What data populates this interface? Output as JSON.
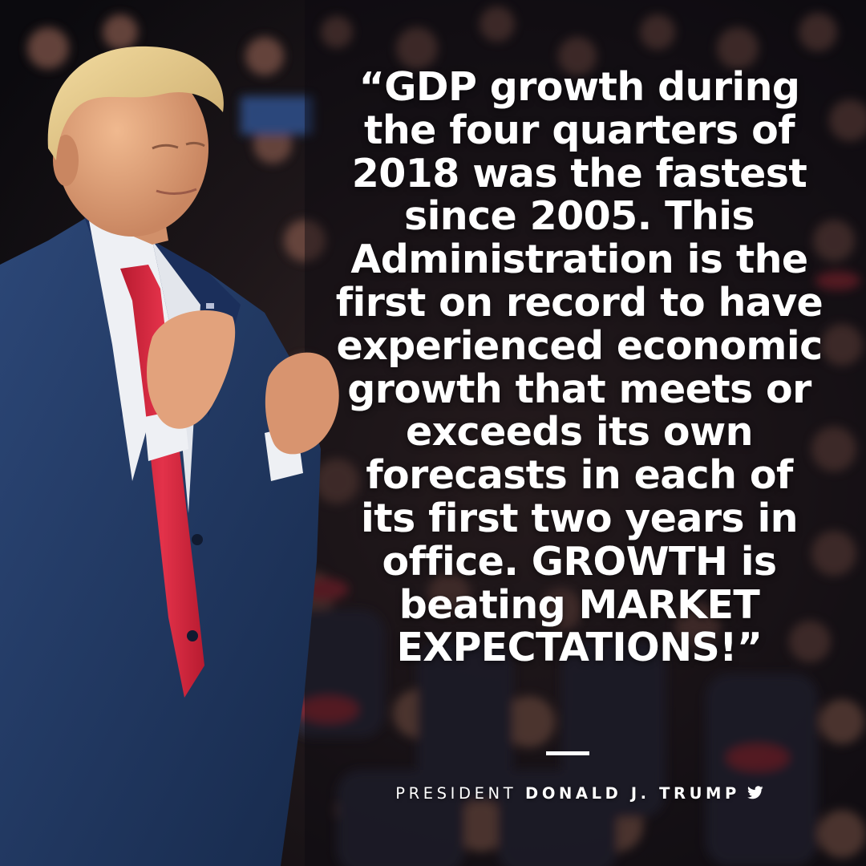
{
  "quote": {
    "lines": [
      "“GDP growth during",
      "the four quarters of",
      "2018 was the fastest",
      "since 2005. This",
      "Administration is the",
      "first on record to have",
      "experienced economic",
      "growth that meets or",
      "exceeds its own",
      "forecasts in each of",
      "its first two years in",
      "office. GROWTH is",
      "beating MARKET",
      "EXPECTATIONS!”"
    ]
  },
  "attribution": {
    "prefix": "PRESIDENT",
    "name": "DONALD J. TRUMP"
  },
  "icons": {
    "social": "twitter-bird-icon"
  },
  "colors": {
    "text": "#ffffff",
    "suit": "#233a66",
    "tie": "#d8263a",
    "background": "#100d14"
  }
}
